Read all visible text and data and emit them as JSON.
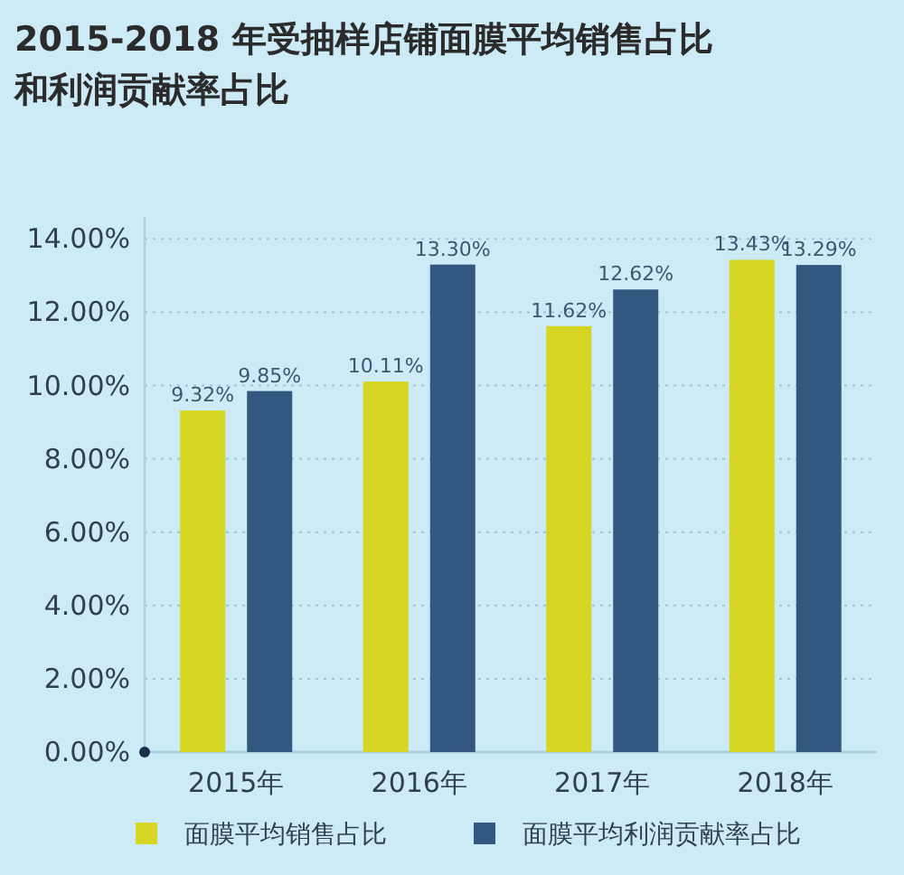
{
  "chart_data": {
    "type": "bar",
    "title": "2015-2018 年受抽样店铺面膜平均销售占比和利润贡献率占比",
    "categories": [
      "2015年",
      "2016年",
      "2017年",
      "2018年"
    ],
    "series": [
      {
        "name": "面膜平均销售占比",
        "color": "#d4d622",
        "values": [
          9.32,
          10.11,
          11.62,
          13.43
        ],
        "value_labels": [
          "9.32%",
          "10.11%",
          "11.62%",
          "13.43%"
        ]
      },
      {
        "name": "面膜平均利润贡献率占比",
        "color": "#33587f",
        "values": [
          9.85,
          13.3,
          12.62,
          13.29
        ],
        "value_labels": [
          "9.85%",
          "13.30%",
          "12.62%",
          "13.29%"
        ]
      }
    ],
    "ylim": [
      0,
      14.6
    ],
    "yticks": [
      {
        "value": 0,
        "label": "0.00%"
      },
      {
        "value": 2,
        "label": "2.00%"
      },
      {
        "value": 4,
        "label": "4.00%"
      },
      {
        "value": 6,
        "label": "6.00%"
      },
      {
        "value": 8,
        "label": "8.00%"
      },
      {
        "value": 10,
        "label": "10.00%"
      },
      {
        "value": 12,
        "label": "12.00%"
      },
      {
        "value": 14,
        "label": "14.00%"
      }
    ],
    "grid": "y",
    "legend": "bottom"
  }
}
